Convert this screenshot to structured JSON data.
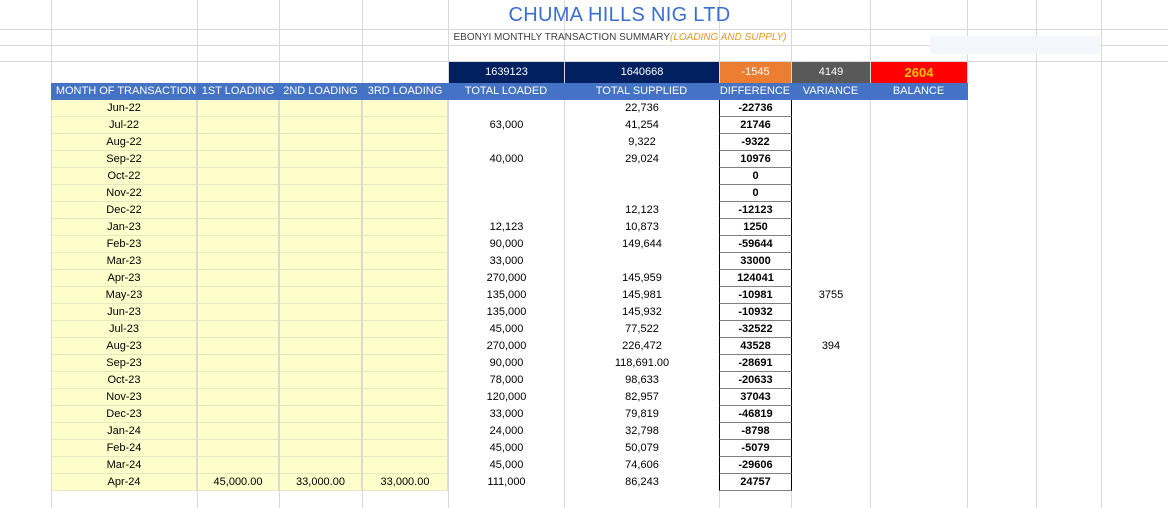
{
  "title": "CHUMA HILLS NIG LTD",
  "subtitle": {
    "main": "EBONYI MONTHLY TRANSACTION SUMMARY",
    "accent": "(LOADING AND SUPPLY)"
  },
  "summary": {
    "total_loaded": "1639123",
    "total_supplied": "1640668",
    "difference": "-1545",
    "variance": "4149",
    "balance": "2604"
  },
  "colors": {
    "header_bg": "#4472c4",
    "dark_navy": "#002060",
    "difference_orange": "#ed7d31",
    "variance_grey": "#595959",
    "balance_red": "#ff0000",
    "balance_text": "#ffc000",
    "month_fill": "#ffffcc",
    "title_blue": "#3a6ecf"
  },
  "headers": {
    "month": "MONTH OF TRANSACTION",
    "first": "1ST LOADING",
    "second": "2ND LOADING",
    "third": "3RD LOADING",
    "loaded": "TOTAL LOADED",
    "supplied": "TOTAL SUPPLIED",
    "difference": "DIFFERENCE",
    "variance": "VARIANCE",
    "balance": "BALANCE"
  },
  "rows": [
    {
      "month": "Jun-22",
      "first": "",
      "second": "",
      "third": "",
      "loaded": "",
      "supplied": "22,736",
      "difference": "-22736",
      "variance": ""
    },
    {
      "month": "Jul-22",
      "first": "",
      "second": "",
      "third": "",
      "loaded": "63,000",
      "supplied": "41,254",
      "difference": "21746",
      "variance": ""
    },
    {
      "month": "Aug-22",
      "first": "",
      "second": "",
      "third": "",
      "loaded": "",
      "supplied": "9,322",
      "difference": "-9322",
      "variance": ""
    },
    {
      "month": "Sep-22",
      "first": "",
      "second": "",
      "third": "",
      "loaded": "40,000",
      "supplied": "29,024",
      "difference": "10976",
      "variance": ""
    },
    {
      "month": "Oct-22",
      "first": "",
      "second": "",
      "third": "",
      "loaded": "",
      "supplied": "",
      "difference": "0",
      "variance": ""
    },
    {
      "month": "Nov-22",
      "first": "",
      "second": "",
      "third": "",
      "loaded": "",
      "supplied": "",
      "difference": "0",
      "variance": ""
    },
    {
      "month": "Dec-22",
      "first": "",
      "second": "",
      "third": "",
      "loaded": "",
      "supplied": "12,123",
      "difference": "-12123",
      "variance": ""
    },
    {
      "month": "Jan-23",
      "first": "",
      "second": "",
      "third": "",
      "loaded": "12,123",
      "supplied": "10,873",
      "difference": "1250",
      "variance": ""
    },
    {
      "month": "Feb-23",
      "first": "",
      "second": "",
      "third": "",
      "loaded": "90,000",
      "supplied": "149,644",
      "difference": "-59644",
      "variance": ""
    },
    {
      "month": "Mar-23",
      "first": "",
      "second": "",
      "third": "",
      "loaded": "33,000",
      "supplied": "",
      "difference": "33000",
      "variance": ""
    },
    {
      "month": "Apr-23",
      "first": "",
      "second": "",
      "third": "",
      "loaded": "270,000",
      "supplied": "145,959",
      "difference": "124041",
      "variance": ""
    },
    {
      "month": "May-23",
      "first": "",
      "second": "",
      "third": "",
      "loaded": "135,000",
      "supplied": "145,981",
      "difference": "-10981",
      "variance": "3755"
    },
    {
      "month": "Jun-23",
      "first": "",
      "second": "",
      "third": "",
      "loaded": "135,000",
      "supplied": "145,932",
      "difference": "-10932",
      "variance": ""
    },
    {
      "month": "Jul-23",
      "first": "",
      "second": "",
      "third": "",
      "loaded": "45,000",
      "supplied": "77,522",
      "difference": "-32522",
      "variance": ""
    },
    {
      "month": "Aug-23",
      "first": "",
      "second": "",
      "third": "",
      "loaded": "270,000",
      "supplied": "226,472",
      "difference": "43528",
      "variance": "394"
    },
    {
      "month": "Sep-23",
      "first": "",
      "second": "",
      "third": "",
      "loaded": "90,000",
      "supplied": "118,691.00",
      "difference": "-28691",
      "variance": ""
    },
    {
      "month": "Oct-23",
      "first": "",
      "second": "",
      "third": "",
      "loaded": "78,000",
      "supplied": "98,633",
      "difference": "-20633",
      "variance": ""
    },
    {
      "month": "Nov-23",
      "first": "",
      "second": "",
      "third": "",
      "loaded": "120,000",
      "supplied": "82,957",
      "difference": "37043",
      "variance": ""
    },
    {
      "month": "Dec-23",
      "first": "",
      "second": "",
      "third": "",
      "loaded": "33,000",
      "supplied": "79,819",
      "difference": "-46819",
      "variance": ""
    },
    {
      "month": "Jan-24",
      "first": "",
      "second": "",
      "third": "",
      "loaded": "24,000",
      "supplied": "32,798",
      "difference": "-8798",
      "variance": ""
    },
    {
      "month": "Feb-24",
      "first": "",
      "second": "",
      "third": "",
      "loaded": "45,000",
      "supplied": "50,079",
      "difference": "-5079",
      "variance": ""
    },
    {
      "month": "Mar-24",
      "first": "",
      "second": "",
      "third": "",
      "loaded": "45,000",
      "supplied": "74,606",
      "difference": "-29606",
      "variance": ""
    },
    {
      "month": "Apr-24",
      "first": "45,000.00",
      "second": "33,000.00",
      "third": "33,000.00",
      "loaded": "111,000",
      "supplied": "86,243",
      "difference": "24757",
      "variance": ""
    }
  ]
}
